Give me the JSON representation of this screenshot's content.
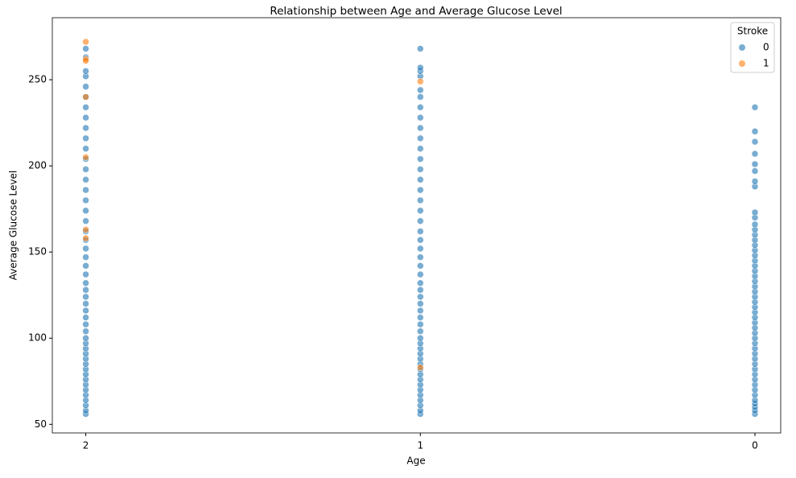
{
  "chart_data": {
    "type": "scatter",
    "title": "Relationship between Age and Average Glucose Level",
    "x_label": "Age",
    "y_label": "Average Glucose Level",
    "categories": [
      "2",
      "1",
      "0"
    ],
    "legend_title": "Stroke",
    "legend_position": "upper right",
    "ylim": [
      45,
      286
    ],
    "yticks": [
      50,
      100,
      150,
      200,
      250
    ],
    "series": [
      {
        "name": "0",
        "color": "#1f77b4",
        "x": [
          "2",
          "2",
          "2",
          "2",
          "2",
          "2",
          "2",
          "2",
          "2",
          "2",
          "2",
          "2",
          "2",
          "2",
          "2",
          "2",
          "2",
          "2",
          "2",
          "2",
          "2",
          "2",
          "2",
          "2",
          "2",
          "2",
          "2",
          "2",
          "2",
          "2",
          "2",
          "2",
          "2",
          "2",
          "2",
          "2",
          "2",
          "2",
          "2",
          "2",
          "2",
          "2",
          "2",
          "2",
          "2",
          "2",
          "2",
          "2",
          "1",
          "1",
          "1",
          "1",
          "1",
          "1",
          "1",
          "1",
          "1",
          "1",
          "1",
          "1",
          "1",
          "1",
          "1",
          "1",
          "1",
          "1",
          "1",
          "1",
          "1",
          "1",
          "1",
          "1",
          "1",
          "1",
          "1",
          "1",
          "1",
          "1",
          "1",
          "1",
          "1",
          "1",
          "1",
          "1",
          "1",
          "1",
          "1",
          "1",
          "1",
          "1",
          "1",
          "1",
          "1",
          "1",
          "1",
          "1",
          "0",
          "0",
          "0",
          "0",
          "0",
          "0",
          "0",
          "0",
          "0",
          "0",
          "0",
          "0",
          "0",
          "0",
          "0",
          "0",
          "0",
          "0",
          "0",
          "0",
          "0",
          "0",
          "0",
          "0",
          "0",
          "0",
          "0",
          "0",
          "0",
          "0",
          "0",
          "0",
          "0",
          "0",
          "0",
          "0",
          "0",
          "0",
          "0",
          "0",
          "0",
          "0",
          "0",
          "0",
          "0",
          "0",
          "0",
          "0",
          "0"
        ],
        "values": [
          56,
          58,
          61,
          64,
          67,
          70,
          73,
          76,
          79,
          82,
          85,
          88,
          91,
          94,
          97,
          100,
          104,
          108,
          112,
          116,
          120,
          124,
          128,
          132,
          137,
          142,
          147,
          152,
          157,
          162,
          168,
          174,
          180,
          186,
          192,
          198,
          204,
          210,
          216,
          222,
          228,
          234,
          240,
          246,
          252,
          255,
          263,
          268,
          56,
          58,
          61,
          64,
          67,
          70,
          73,
          76,
          79,
          82,
          85,
          88,
          91,
          94,
          97,
          100,
          104,
          108,
          112,
          116,
          120,
          124,
          128,
          132,
          137,
          142,
          147,
          152,
          157,
          162,
          168,
          174,
          180,
          186,
          192,
          198,
          204,
          210,
          216,
          222,
          228,
          234,
          240,
          244,
          252,
          255,
          257,
          268,
          56,
          58,
          60,
          62,
          64,
          67,
          70,
          73,
          76,
          79,
          82,
          85,
          88,
          91,
          94,
          97,
          100,
          103,
          106,
          109,
          112,
          115,
          118,
          121,
          124,
          127,
          130,
          133,
          136,
          139,
          142,
          145,
          148,
          151,
          154,
          157,
          160,
          163,
          166,
          170,
          173,
          188,
          191,
          197,
          201,
          207,
          214,
          220,
          234
        ]
      },
      {
        "name": "1",
        "color": "#ff7f0e",
        "x": [
          "2",
          "2",
          "2",
          "2",
          "2",
          "2",
          "2",
          "1",
          "1"
        ],
        "values": [
          272,
          262,
          261,
          240,
          163,
          158,
          205,
          249,
          83
        ]
      }
    ]
  }
}
